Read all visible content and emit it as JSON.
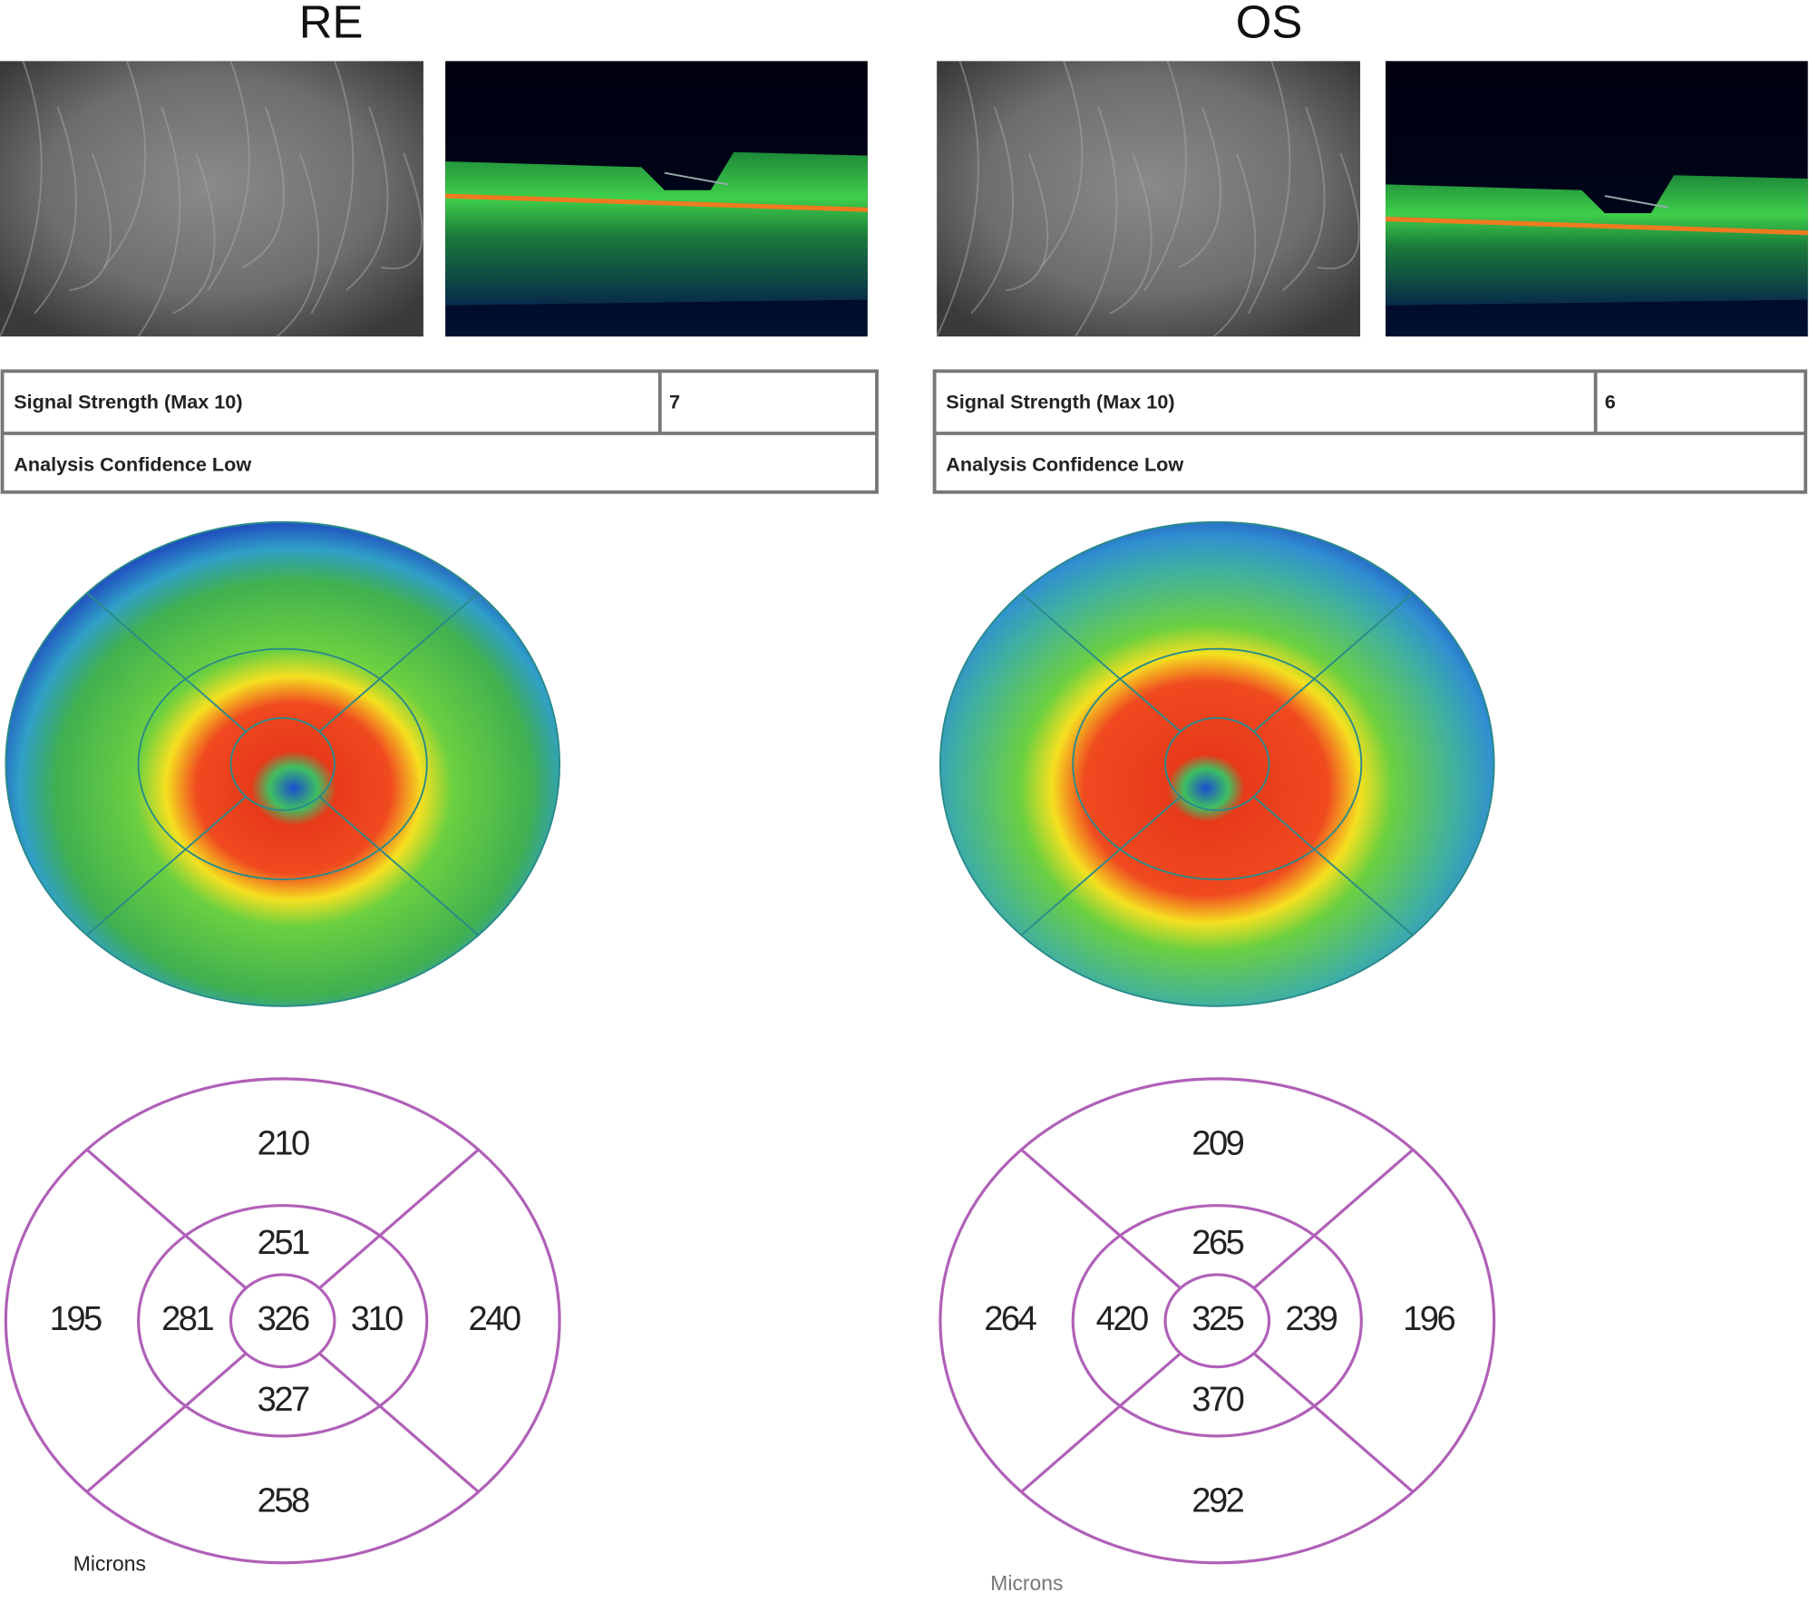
{
  "eyes": [
    {
      "label": "RE",
      "signal_strength_label": "Signal Strength (Max 10)",
      "signal_strength": "7",
      "confidence": "Analysis Confidence Low",
      "grid": {
        "outer_superior": "210",
        "inner_superior": "251",
        "center": "326",
        "inner_left": "281",
        "inner_right": "310",
        "outer_left": "195",
        "outer_right": "240",
        "inner_inferior": "327",
        "outer_inferior": "258"
      },
      "units": "Microns"
    },
    {
      "label": "OS",
      "signal_strength_label": "Signal Strength (Max 10)",
      "signal_strength": "6",
      "confidence": "Analysis Confidence Low",
      "grid": {
        "outer_superior": "209",
        "inner_superior": "265",
        "center": "325",
        "inner_left": "420",
        "inner_right": "239",
        "outer_left": "264",
        "outer_right": "196",
        "inner_inferior": "370",
        "outer_inferior": "292"
      },
      "units": "Microns"
    }
  ]
}
